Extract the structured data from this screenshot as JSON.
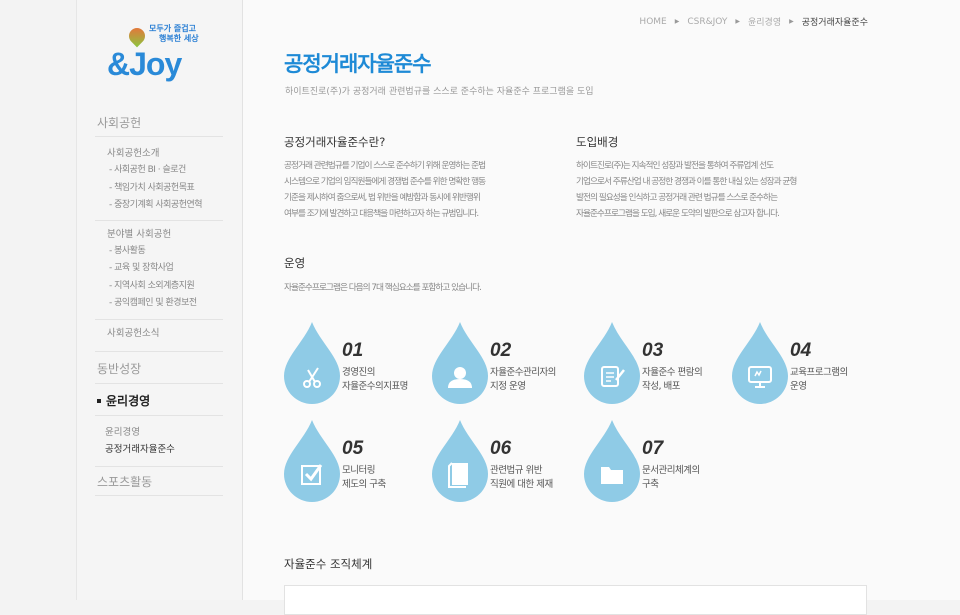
{
  "logo": {
    "tagline1": "모두가 즐겁고",
    "tagline2": "행복한 세상",
    "brand": "&Joy"
  },
  "sidebar": {
    "sections": [
      {
        "label": "사회공헌"
      },
      {
        "label": "동반성장"
      },
      {
        "label": "윤리경영",
        "active": true
      },
      {
        "label": "스포츠활동"
      }
    ],
    "group1": {
      "label": "사회공헌소개",
      "items": [
        "- 사회공헌 BI · 슬로건",
        "- 책임가치 사회공헌목표",
        "- 중장기계획 사회공헌연혁"
      ]
    },
    "group2": {
      "label": "분야별 사회공헌",
      "items": [
        "- 봉사활동",
        "- 교육 및 장학사업",
        "- 지역사회 소외계층지원",
        "- 공익캠페인 및 환경보전"
      ]
    },
    "group3": {
      "label": "사회공헌소식"
    },
    "ethics": {
      "items": [
        "윤리경영",
        "공정거래자율준수"
      ]
    }
  },
  "breadcrumb": [
    "HOME",
    "CSR&JOY",
    "윤리경영",
    "공정거래자율준수"
  ],
  "page": {
    "title": "공정거래자율준수",
    "subtitle": "하이트진로(주)가 공정거래 관련법규를 스스로 준수하는 자율준수 프로그램을 도입"
  },
  "sections": {
    "what": {
      "title": "공정거래자율준수란?",
      "lines": [
        "공정거래 관련법규를 기업이 스스로 준수하기 위해 운영하는 준법",
        "시스템으로 기업의 임직원들에게 경쟁법 준수를 위한 명확한 행동",
        "기준을 제시하여 줌으로써, 법 위반을 예방함과 동시에 위반행위",
        "여부를 조기에 발견하고 대응책을 마련하고자 하는 규범입니다."
      ]
    },
    "background": {
      "title": "도입배경",
      "lines": [
        "하이트진로(주)는 지속적인 성장과 발전을 통하여 주류업계 선도",
        "기업으로서 주류산업 내 공정한 경쟁과 이를 통한 내실 있는 성장과 균형",
        "발전의 필요성을 인식하고 공정거래 관련 법규를 스스로 준수하는",
        "자율준수프로그램을 도입, 새로운 도약의 발판으로 삼고자 합니다."
      ]
    },
    "operation": {
      "title": "운영",
      "desc": "자율준수프로그램은 다음의 7대 핵심요소를 포함하고 있습니다."
    },
    "org": {
      "title": "자율준수 조직체계"
    }
  },
  "elements": [
    {
      "num": "01",
      "l1": "경영진의",
      "l2": "자율준수의지표명",
      "icon": "scissors-icon"
    },
    {
      "num": "02",
      "l1": "자율준수관리자의",
      "l2": "지정 운영",
      "icon": "person-icon"
    },
    {
      "num": "03",
      "l1": "자율준수 편람의",
      "l2": "작성, 배포",
      "icon": "document-pen-icon"
    },
    {
      "num": "04",
      "l1": "교육프로그램의",
      "l2": "운영",
      "icon": "monitor-icon"
    },
    {
      "num": "05",
      "l1": "모니터링",
      "l2": "제도의 구축",
      "icon": "checkbox-icon"
    },
    {
      "num": "06",
      "l1": "관련법규 위반",
      "l2": "직원에 대한 제재",
      "icon": "book-icon"
    },
    {
      "num": "07",
      "l1": "문서관리체계의",
      "l2": "구축",
      "icon": "folder-icon"
    }
  ],
  "colors": {
    "accent": "#1e8ad6",
    "drop": "#8fcbe6"
  }
}
